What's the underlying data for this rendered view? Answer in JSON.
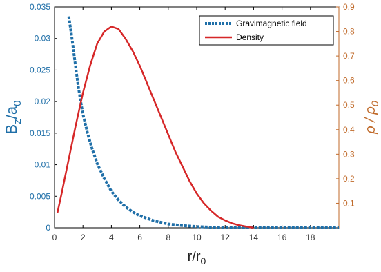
{
  "chart_data": {
    "type": "line",
    "xlabel": {
      "main": "r/r",
      "sub": "0"
    },
    "ylabel_left": {
      "a": "B",
      "sub1": "z",
      "b": "/a",
      "sub2": "0"
    },
    "ylabel_right": {
      "a": "ρ / ρ",
      "sub": "0"
    },
    "xlim": [
      0,
      20
    ],
    "ylim_left": [
      0,
      0.035
    ],
    "ylim_right": [
      0,
      0.9
    ],
    "x_ticks": [
      "0",
      "2",
      "4",
      "6",
      "8",
      "10",
      "12",
      "14",
      "16",
      "18"
    ],
    "x_tick_values": [
      0,
      2,
      4,
      6,
      8,
      10,
      12,
      14,
      16,
      18
    ],
    "y_left_ticks": [
      "0",
      "0.005",
      "0.01",
      "0.015",
      "0.02",
      "0.025",
      "0.03",
      "0.035"
    ],
    "y_left_tick_values": [
      0,
      0.005,
      0.01,
      0.015,
      0.02,
      0.025,
      0.03,
      0.035
    ],
    "y_right_ticks": [
      "0.1",
      "0.2",
      "0.3",
      "0.4",
      "0.5",
      "0.6",
      "0.7",
      "0.8",
      "0.9"
    ],
    "y_right_tick_values": [
      0.1,
      0.2,
      0.3,
      0.4,
      0.5,
      0.6,
      0.7,
      0.8,
      0.9
    ],
    "legend_position": "top-right",
    "grid": false,
    "series": [
      {
        "name": "Gravimagnetic field",
        "axis": "left",
        "style": "dotted",
        "color": "#1f6fa8",
        "x": [
          1.0,
          1.2,
          1.4,
          1.6,
          1.8,
          2.0,
          2.3,
          2.6,
          3.0,
          3.5,
          4.0,
          4.5,
          5.0,
          5.5,
          6.0,
          7.0,
          8.0,
          9.0,
          10.0,
          11.0,
          12.0,
          14.0,
          16.0,
          18.0,
          20.0
        ],
        "y": [
          0.0335,
          0.0305,
          0.027,
          0.0235,
          0.0205,
          0.018,
          0.0152,
          0.0128,
          0.0102,
          0.0078,
          0.0058,
          0.0044,
          0.0033,
          0.0025,
          0.0019,
          0.0011,
          0.0006,
          0.00035,
          0.0002,
          0.0001,
          5e-05,
          0.0,
          0.0,
          0.0,
          0.0
        ]
      },
      {
        "name": "Density",
        "axis": "right",
        "style": "solid",
        "color": "#d62728",
        "x": [
          0.2,
          0.5,
          1.0,
          1.5,
          2.0,
          2.5,
          3.0,
          3.5,
          4.0,
          4.5,
          5.0,
          5.5,
          6.0,
          6.5,
          7.0,
          7.5,
          8.0,
          8.5,
          9.0,
          9.5,
          10.0,
          10.5,
          11.0,
          11.5,
          12.0,
          12.5,
          13.0,
          13.5,
          14.0
        ],
        "y": [
          0.06,
          0.14,
          0.28,
          0.42,
          0.55,
          0.66,
          0.75,
          0.8,
          0.82,
          0.81,
          0.77,
          0.72,
          0.66,
          0.59,
          0.52,
          0.45,
          0.38,
          0.31,
          0.25,
          0.19,
          0.14,
          0.1,
          0.07,
          0.045,
          0.03,
          0.018,
          0.01,
          0.005,
          0.0
        ]
      }
    ]
  },
  "colors": {
    "left_axis": "#1f6fa8",
    "right_axis": "#c06a2a",
    "frame": "#000000"
  }
}
